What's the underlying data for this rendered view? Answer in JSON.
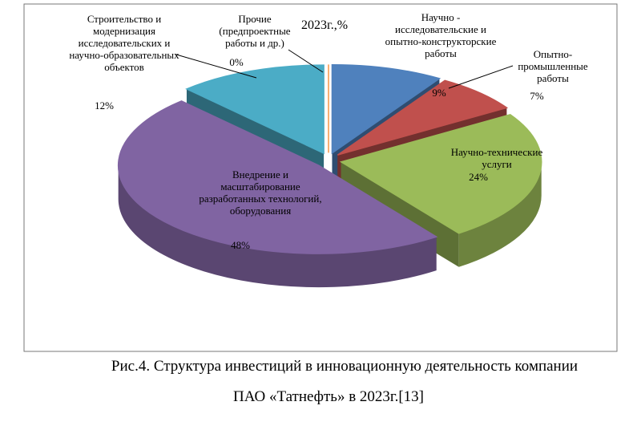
{
  "chart_data": {
    "type": "pie",
    "title": "2023г.,%",
    "categories": [
      "Научно - исследовательские и опытно-конструкторские работы",
      "Опытно-промышленные работы",
      "Научно-технические услуги",
      "Внедрение и масштабирование разработанных технологий, оборудования",
      "Строительство и модернизация исследовательских и научно-образовательных объектов",
      "Прочие (предпроектные работы и др.)"
    ],
    "values": [
      9,
      7,
      24,
      48,
      12,
      0
    ],
    "value_labels": [
      "9%",
      "7%",
      "24%",
      "48%",
      "12%",
      "0%"
    ],
    "colors": [
      "#4f81bd",
      "#c0504d",
      "#9bbb59",
      "#8064a2",
      "#4bacc6",
      "#f79646"
    ]
  },
  "caption": [
    "Рис.4. Структура инвестиций в инновационную деятельность компании",
    "ПАО «Татнефть» в 2023г.[13]"
  ]
}
